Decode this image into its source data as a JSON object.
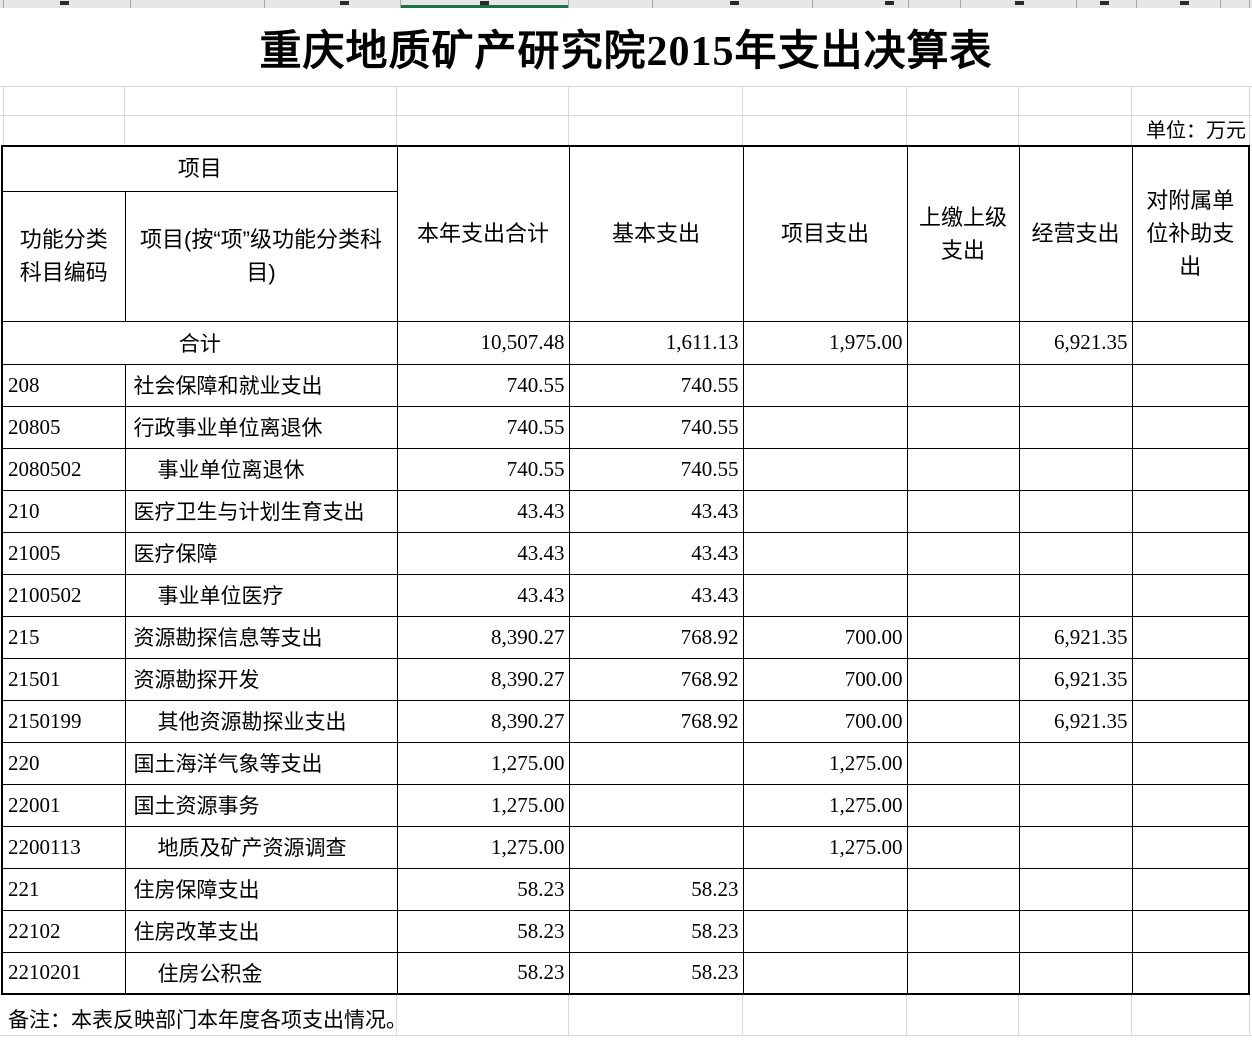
{
  "title": "重庆地质矿产研究院2015年支出决算表",
  "unit_label": "单位：万元",
  "table": {
    "header": {
      "group_project": "项目",
      "col_code": "功能分类科目编码",
      "col_item": "项目(按“项”级功能分类科目)",
      "col_total": "本年支出合计",
      "col_basic": "基本支出",
      "col_project": "项目支出",
      "col_upper": "上缴上级支出",
      "col_operating": "经营支出",
      "col_subsidy": "对附属单位补助支出"
    },
    "total_row": {
      "label": "合计",
      "values": [
        "10,507.48",
        "1,611.13",
        "1,975.00",
        "",
        "6,921.35",
        ""
      ]
    },
    "rows": [
      {
        "code": "208",
        "name": "社会保障和就业支出",
        "indent": 0,
        "values": [
          "740.55",
          "740.55",
          "",
          "",
          "",
          ""
        ]
      },
      {
        "code": "20805",
        "name": "行政事业单位离退休",
        "indent": 0,
        "values": [
          "740.55",
          "740.55",
          "",
          "",
          "",
          ""
        ]
      },
      {
        "code": "2080502",
        "name": "事业单位离退休",
        "indent": 1,
        "values": [
          "740.55",
          "740.55",
          "",
          "",
          "",
          ""
        ]
      },
      {
        "code": "210",
        "name": "医疗卫生与计划生育支出",
        "indent": 0,
        "values": [
          "43.43",
          "43.43",
          "",
          "",
          "",
          ""
        ]
      },
      {
        "code": "21005",
        "name": "医疗保障",
        "indent": 0,
        "values": [
          "43.43",
          "43.43",
          "",
          "",
          "",
          ""
        ]
      },
      {
        "code": "2100502",
        "name": "事业单位医疗",
        "indent": 1,
        "values": [
          "43.43",
          "43.43",
          "",
          "",
          "",
          ""
        ]
      },
      {
        "code": "215",
        "name": "资源勘探信息等支出",
        "indent": 0,
        "values": [
          "8,390.27",
          "768.92",
          "700.00",
          "",
          "6,921.35",
          ""
        ]
      },
      {
        "code": "21501",
        "name": "资源勘探开发",
        "indent": 0,
        "values": [
          "8,390.27",
          "768.92",
          "700.00",
          "",
          "6,921.35",
          ""
        ]
      },
      {
        "code": "2150199",
        "name": "其他资源勘探业支出",
        "indent": 1,
        "values": [
          "8,390.27",
          "768.92",
          "700.00",
          "",
          "6,921.35",
          ""
        ]
      },
      {
        "code": "220",
        "name": "国土海洋气象等支出",
        "indent": 0,
        "values": [
          "1,275.00",
          "",
          "1,275.00",
          "",
          "",
          ""
        ]
      },
      {
        "code": "22001",
        "name": "国土资源事务",
        "indent": 0,
        "values": [
          "1,275.00",
          "",
          "1,275.00",
          "",
          "",
          ""
        ]
      },
      {
        "code": "2200113",
        "name": "地质及矿产资源调查",
        "indent": 1,
        "values": [
          "1,275.00",
          "",
          "1,275.00",
          "",
          "",
          ""
        ]
      },
      {
        "code": "221",
        "name": "住房保障支出",
        "indent": 0,
        "values": [
          "58.23",
          "58.23",
          "",
          "",
          "",
          ""
        ]
      },
      {
        "code": "22102",
        "name": "住房改革支出",
        "indent": 0,
        "values": [
          "58.23",
          "58.23",
          "",
          "",
          "",
          ""
        ]
      },
      {
        "code": "2210201",
        "name": "住房公积金",
        "indent": 1,
        "values": [
          "58.23",
          "58.23",
          "",
          "",
          "",
          ""
        ]
      }
    ]
  },
  "note": "备注：本表反映部门本年度各项支出情况。",
  "colors": {
    "accent_green": "#1e7145",
    "strip_bg": "#e7e7e7",
    "grid_faint": "#d9d9d9",
    "table_border": "#000000"
  }
}
